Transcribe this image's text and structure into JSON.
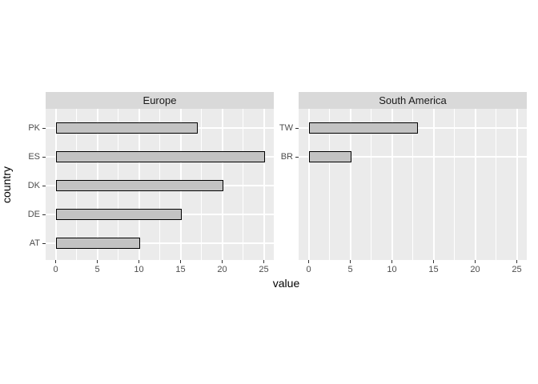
{
  "chart_data": {
    "type": "bar",
    "orientation": "horizontal",
    "xlabel": "value",
    "ylabel": "country",
    "xlim": [
      0,
      25
    ],
    "x_ticks": [
      0,
      5,
      10,
      15,
      20,
      25
    ],
    "x_minor_ticks": [
      2.5,
      7.5,
      12.5,
      17.5,
      22.5
    ],
    "grid": true,
    "legend": "none",
    "facets": [
      {
        "label": "Europe",
        "categories": [
          "PK",
          "ES",
          "DK",
          "DE",
          "AT"
        ],
        "values": [
          17,
          25,
          20,
          15,
          10
        ]
      },
      {
        "label": "South America",
        "categories": [
          "TW",
          "BR"
        ],
        "values": [
          13,
          5
        ]
      }
    ],
    "colors": {
      "background": "#FFFFFF",
      "panel_bg": "#EBEBEB",
      "strip_bg": "#D9D9D9",
      "strip_text": "#1A1A1A",
      "bar_fill": "#C3C3C3",
      "bar_border": "#000000",
      "grid": "#FFFFFF",
      "axis_text": "#4D4D4D",
      "tick_mark": "#333333",
      "axis_title": "#000000"
    }
  }
}
